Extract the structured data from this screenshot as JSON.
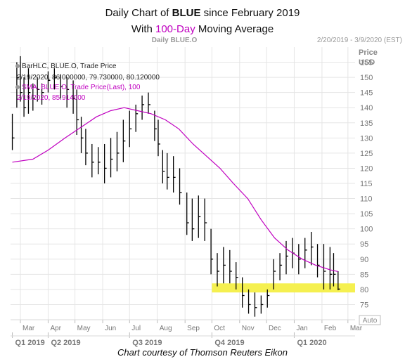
{
  "header": {
    "title_prefix": "Daily Chart of ",
    "title_ticker": "BLUE",
    "title_suffix": " since February 2019",
    "subtitle_prefix": "With ",
    "subtitle_highlight": "100-Day",
    "subtitle_suffix": " Moving Average"
  },
  "panel": {
    "label": "Daily BLUE.O",
    "date_range": "2/20/2019 - 3/9/2020 (EST)",
    "y_unit_1": "Price",
    "y_unit_2": "USD",
    "auto_label": "Auto"
  },
  "legend": {
    "bar_label": "BarHLC, BLUE.O, Trade Price",
    "bar_values": "2/19/2020, 86.000000, 79.730000, 80.120000",
    "sma_label": "SMA, BLUE.O, Trade Price(Last), 100",
    "sma_values": "2/19/2020, 85.914000"
  },
  "caption": "Chart courtesy of Thomson Reuters Eikon",
  "colors": {
    "bars": "#000000",
    "sma": "#c000c0",
    "support_band": "#f5f050",
    "grid": "#e3e3e3",
    "axis_text": "#777777"
  },
  "chart_data": {
    "type": "line",
    "title": "Daily Chart of BLUE since February 2019",
    "ylim": [
      70,
      160
    ],
    "y_ticks": [
      75,
      80,
      85,
      90,
      95,
      100,
      105,
      110,
      115,
      120,
      125,
      130,
      135,
      140,
      145,
      150,
      155
    ],
    "x_months": [
      "Mar",
      "Apr",
      "May",
      "Jun",
      "Jul",
      "Aug",
      "Sep",
      "Oct",
      "Nov",
      "Dec",
      "Jan",
      "Feb",
      "Mar"
    ],
    "x_quarters": [
      "Q1 2019",
      "Q2 2019",
      "Q3 2019",
      "Q4 2019",
      "Q1 2020"
    ],
    "support_band": [
      79,
      82
    ],
    "price_series": {
      "dates": [
        "2019-02-20",
        "2019-02-25",
        "2019-03-01",
        "2019-03-05",
        "2019-03-10",
        "2019-03-15",
        "2019-03-20",
        "2019-03-25",
        "2019-04-01",
        "2019-04-08",
        "2019-04-15",
        "2019-04-22",
        "2019-04-29",
        "2019-05-03",
        "2019-05-08",
        "2019-05-13",
        "2019-05-20",
        "2019-05-27",
        "2019-06-03",
        "2019-06-10",
        "2019-06-17",
        "2019-06-24",
        "2019-07-01",
        "2019-07-08",
        "2019-07-15",
        "2019-07-22",
        "2019-07-29",
        "2019-08-02",
        "2019-08-07",
        "2019-08-12",
        "2019-08-19",
        "2019-08-26",
        "2019-09-03",
        "2019-09-09",
        "2019-09-16",
        "2019-09-23",
        "2019-09-30",
        "2019-10-07",
        "2019-10-14",
        "2019-10-21",
        "2019-10-28",
        "2019-11-04",
        "2019-11-11",
        "2019-11-18",
        "2019-11-25",
        "2019-12-02",
        "2019-12-09",
        "2019-12-16",
        "2019-12-23",
        "2019-12-30",
        "2020-01-06",
        "2020-01-13",
        "2020-01-20",
        "2020-01-27",
        "2020-02-03",
        "2020-02-10",
        "2020-02-14",
        "2020-02-19"
      ],
      "high": [
        138,
        155,
        157,
        150,
        153,
        148,
        150,
        148,
        152,
        153,
        151,
        150,
        149,
        146,
        137,
        133,
        128,
        127,
        128,
        130,
        132,
        136,
        139,
        141,
        144,
        145,
        139,
        136,
        126,
        125,
        124,
        120,
        112,
        110,
        111,
        110,
        100,
        92,
        94,
        93,
        89,
        84,
        80,
        79,
        78,
        80,
        90,
        92,
        96,
        97,
        95,
        97,
        99,
        95,
        95,
        94,
        92,
        86
      ],
      "low": [
        126,
        140,
        142,
        137,
        138,
        139,
        142,
        141,
        145,
        146,
        143,
        140,
        138,
        131,
        125,
        121,
        117,
        118,
        115,
        117,
        119,
        122,
        127,
        132,
        136,
        138,
        129,
        124,
        115,
        113,
        112,
        108,
        98,
        96,
        97,
        96,
        85,
        81,
        82,
        82,
        80,
        74,
        72,
        71,
        72,
        74,
        80,
        83,
        85,
        87,
        85,
        87,
        88,
        84,
        80,
        80,
        81,
        79.73
      ],
      "close": [
        130,
        150,
        145,
        140,
        145,
        143,
        146,
        145,
        149,
        150,
        147,
        146,
        143,
        136,
        130,
        125,
        122,
        122,
        120,
        123,
        125,
        129,
        133,
        138,
        141,
        141,
        133,
        128,
        119,
        117,
        117,
        112,
        102,
        100,
        104,
        102,
        90,
        86,
        88,
        86,
        84,
        78,
        75,
        74,
        75,
        78,
        86,
        88,
        91,
        92,
        90,
        93,
        94,
        88,
        86,
        85,
        85,
        80.12
      ]
    },
    "sma_series": {
      "name": "SMA 100",
      "dates": [
        "2019-02-20",
        "2019-03-15",
        "2019-04-01",
        "2019-04-20",
        "2019-05-10",
        "2019-05-25",
        "2019-06-10",
        "2019-06-25",
        "2019-07-10",
        "2019-07-25",
        "2019-08-10",
        "2019-08-25",
        "2019-09-10",
        "2019-09-25",
        "2019-10-10",
        "2019-10-25",
        "2019-11-10",
        "2019-11-25",
        "2019-12-10",
        "2019-12-25",
        "2020-01-10",
        "2020-01-25",
        "2020-02-10",
        "2020-02-19"
      ],
      "values": [
        122,
        123,
        126,
        130,
        134,
        137,
        139,
        140,
        139,
        138,
        136,
        133,
        128,
        124,
        120,
        115,
        110,
        103,
        97,
        93,
        90,
        88,
        86.5,
        85.914
      ]
    }
  }
}
